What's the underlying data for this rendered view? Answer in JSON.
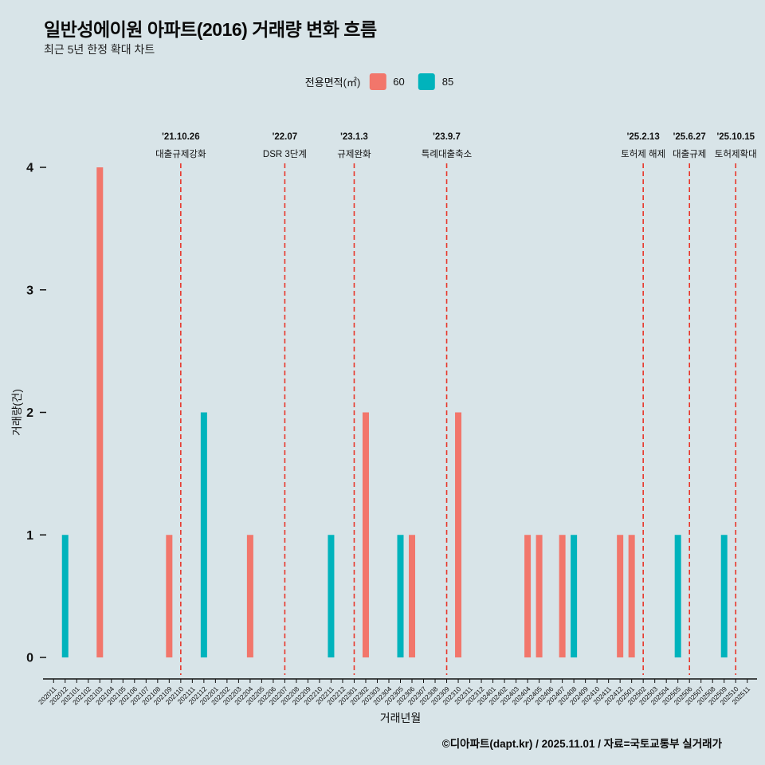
{
  "title": "일반성에이원 아파트(2016) 거래량 변화 흐름",
  "subtitle": "최근 5년 한정 확대 차트",
  "legend": {
    "title": "전용면적(㎡)",
    "items": [
      {
        "label": "60",
        "color": "#f2766b"
      },
      {
        "label": "85",
        "color": "#00b3bc"
      }
    ]
  },
  "footer": "©디아파트(dapt.kr) / 2025.11.01 / 자료=국토교통부 실거래가",
  "colors": {
    "background": "#d8e4e8",
    "annotation_line": "#e8362a",
    "text": "#111111"
  },
  "chart_data": {
    "type": "bar",
    "title": "일반성에이원 아파트(2016) 거래량 변화 흐름",
    "xlabel": "거래년월",
    "ylabel": "거래량(건)",
    "ylim": [
      0,
      4
    ],
    "yticks": [
      0,
      1,
      2,
      3,
      4
    ],
    "grid": false,
    "legend_position": "top",
    "categories": [
      "202011",
      "202012",
      "202101",
      "202102",
      "202103",
      "202104",
      "202105",
      "202106",
      "202107",
      "202108",
      "202109",
      "202110",
      "202111",
      "202112",
      "202201",
      "202202",
      "202203",
      "202204",
      "202205",
      "202206",
      "202207",
      "202208",
      "202209",
      "202210",
      "202211",
      "202212",
      "202301",
      "202302",
      "202303",
      "202304",
      "202305",
      "202306",
      "202307",
      "202308",
      "202309",
      "202310",
      "202311",
      "202312",
      "202401",
      "202402",
      "202403",
      "202404",
      "202405",
      "202406",
      "202407",
      "202408",
      "202409",
      "202410",
      "202411",
      "202412",
      "202501",
      "202502",
      "202503",
      "202504",
      "202505",
      "202506",
      "202507",
      "202508",
      "202509",
      "202510",
      "202511"
    ],
    "series": [
      {
        "name": "60",
        "color": "#f2766b",
        "points": {
          "202103": 4,
          "202109": 1,
          "202204": 1,
          "202302": 2,
          "202306": 1,
          "202310": 2,
          "202404": 1,
          "202405": 1,
          "202407": 1,
          "202412": 1,
          "202501": 1
        }
      },
      {
        "name": "85",
        "color": "#00b3bc",
        "points": {
          "202012": 1,
          "202112": 2,
          "202211": 1,
          "202305": 1,
          "202408": 1,
          "202505": 1,
          "202509": 1
        }
      }
    ],
    "annotations": [
      {
        "month": "202110",
        "date": "'21.10.26",
        "label": "대출규제강화"
      },
      {
        "month": "202207",
        "date": "'22.07",
        "label": "DSR 3단계"
      },
      {
        "month": "202301",
        "date": "'23.1.3",
        "label": "규제완화"
      },
      {
        "month": "202309",
        "date": "'23.9.7",
        "label": "특례대출축소"
      },
      {
        "month": "202502",
        "date": "'25.2.13",
        "label": "토허제 해제"
      },
      {
        "month": "202506",
        "date": "'25.6.27",
        "label": "대출규제"
      },
      {
        "month": "202510",
        "date": "'25.10.15",
        "label": "토허제확대"
      }
    ]
  }
}
